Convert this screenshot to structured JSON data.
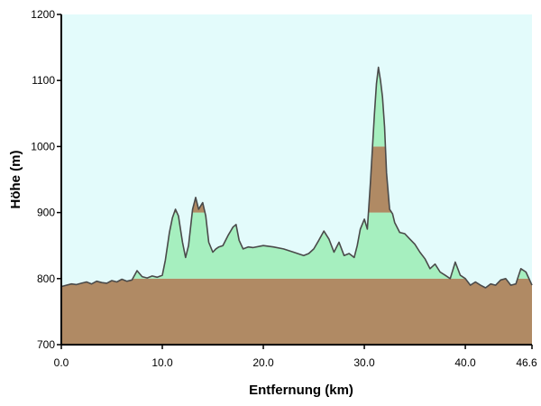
{
  "chart_data": {
    "type": "area",
    "xlabel": "Entfernung  (km)",
    "ylabel": "Höhe  (m)",
    "xlim": [
      0,
      46.6
    ],
    "ylim": [
      700,
      1200
    ],
    "x_ticks": [
      0,
      10,
      20,
      30,
      40,
      46.6
    ],
    "x_tick_labels": [
      "0.0",
      "10.0",
      "20.0",
      "30.0",
      "40.0",
      "46.6"
    ],
    "y_ticks": [
      700,
      800,
      900,
      1000,
      1100,
      1200
    ],
    "y_tick_labels": [
      "700",
      "800",
      "900",
      "1000",
      "1100",
      "1200"
    ],
    "grid": false,
    "bands": [
      {
        "from": 700,
        "to": 800,
        "color": "#b08a64"
      },
      {
        "from": 800,
        "to": 900,
        "color": "#a6efbf"
      },
      {
        "from": 900,
        "to": 1000,
        "color": "#b08a64"
      },
      {
        "from": 1000,
        "to": 1200,
        "color": "#a6efbf"
      }
    ],
    "colors": {
      "plot_background": "#e3fbfb",
      "profile_line": "#4a4a4a",
      "axis": "#000000"
    },
    "series": [
      {
        "x": [
          0,
          0.5,
          1,
          1.5,
          2,
          2.5,
          3,
          3.5,
          4,
          4.5,
          5,
          5.5,
          6,
          6.5,
          7,
          7.5,
          8,
          8.5,
          9,
          9.5,
          10,
          10.3,
          10.7,
          11,
          11.3,
          11.6,
          12,
          12.3,
          12.6,
          13,
          13.3,
          13.6,
          14,
          14.3,
          14.6,
          15,
          15.3,
          15.6,
          16,
          16.5,
          17,
          17.3,
          17.6,
          18,
          18.5,
          19,
          20,
          21,
          22,
          23,
          24,
          24.5,
          25,
          25.5,
          26,
          26.5,
          27,
          27.5,
          28,
          28.5,
          29,
          29.3,
          29.6,
          30,
          30.3,
          30.6,
          31,
          31.2,
          31.4,
          31.6,
          31.8,
          32,
          32.2,
          32.5,
          32.8,
          33,
          33.5,
          34,
          34.5,
          35,
          35.5,
          36,
          36.5,
          37,
          37.5,
          38,
          38.5,
          39,
          39.5,
          40,
          40.5,
          41,
          41.5,
          42,
          42.5,
          43,
          43.5,
          44,
          44.5,
          45,
          45.5,
          46,
          46.6
        ],
        "y": [
          788,
          790,
          792,
          791,
          793,
          795,
          792,
          796,
          794,
          793,
          797,
          795,
          799,
          796,
          798,
          812,
          803,
          801,
          804,
          802,
          805,
          828,
          870,
          892,
          905,
          895,
          855,
          832,
          850,
          905,
          923,
          905,
          915,
          895,
          855,
          840,
          845,
          848,
          850,
          865,
          878,
          882,
          858,
          845,
          848,
          847,
          850,
          848,
          845,
          840,
          835,
          838,
          845,
          858,
          872,
          860,
          840,
          855,
          835,
          838,
          832,
          850,
          875,
          890,
          875,
          945,
          1050,
          1095,
          1120,
          1100,
          1075,
          1030,
          960,
          905,
          898,
          885,
          870,
          868,
          860,
          852,
          840,
          830,
          815,
          822,
          810,
          805,
          800,
          825,
          805,
          800,
          790,
          795,
          790,
          786,
          792,
          790,
          798,
          800,
          790,
          792,
          815,
          810,
          790
        ]
      }
    ]
  }
}
